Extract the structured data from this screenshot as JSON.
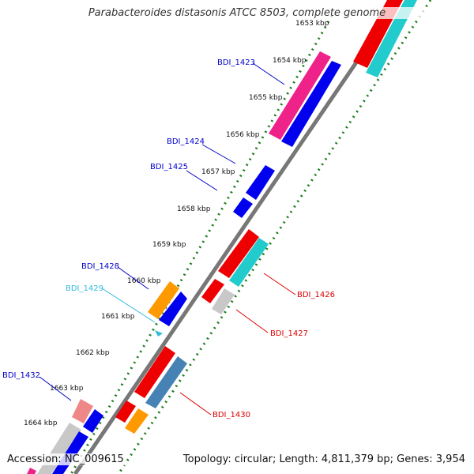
{
  "title": "Parabacteroides distasonis ATCC 8503, complete genome",
  "footer": {
    "accession": "Accession: NC_009615",
    "summary": "Topology: circular; Length: 4,811,379 bp; Genes: 3,954"
  },
  "colors": {
    "label_blue": "#0000cc",
    "label_cyan": "#33bbdd",
    "label_red": "#dd0000",
    "backbone": "#808080",
    "tick_green": "#1a7a1a"
  },
  "kbp_ticks": [
    "1653 kbp",
    "1654 kbp",
    "1655 kbp",
    "1656 kbp",
    "1657 kbp",
    "1658 kbp",
    "1659 kbp",
    "1660 kbp",
    "1661 kbp",
    "1662 kbp",
    "1663 kbp",
    "1664 kbp"
  ],
  "gene_labels": [
    {
      "name": "BDI_1423",
      "color": "#0000cc"
    },
    {
      "name": "BDI_1424",
      "color": "#0000cc"
    },
    {
      "name": "BDI_1425",
      "color": "#0000cc"
    },
    {
      "name": "BDI_1428",
      "color": "#0000cc"
    },
    {
      "name": "BDI_1429",
      "color": "#33bbdd"
    },
    {
      "name": "BDI_1432",
      "color": "#0000cc"
    },
    {
      "name": "BDI_1426",
      "color": "#dd0000"
    },
    {
      "name": "BDI_1427",
      "color": "#dd0000"
    },
    {
      "name": "BDI_1430",
      "color": "#dd0000"
    }
  ]
}
